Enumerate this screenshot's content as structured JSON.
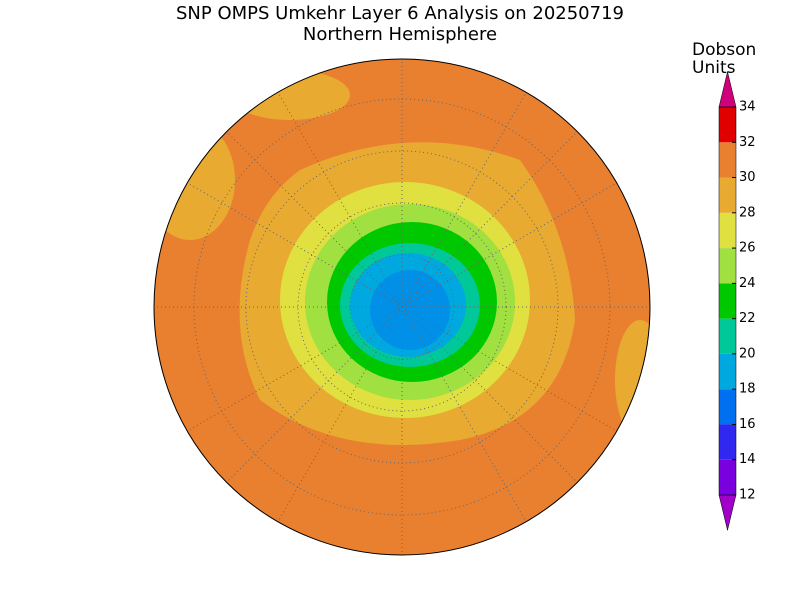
{
  "title": "SNP OMPS Umkehr Layer 6 Analysis on 20250719",
  "subtitle": "Northern Hemisphere",
  "colorbar": {
    "label_lines": [
      "Dobson",
      "Units"
    ],
    "ticks": [
      12,
      14,
      16,
      18,
      20,
      22,
      24,
      26,
      28,
      30,
      32,
      34
    ],
    "colors": [
      "#a000c8",
      "#7a00e0",
      "#3028f0",
      "#0070f0",
      "#00a8e0",
      "#00c898",
      "#00c800",
      "#a0e040",
      "#e0e040",
      "#e8aa30",
      "#e88030",
      "#e00000",
      "#d0007a"
    ]
  }
}
